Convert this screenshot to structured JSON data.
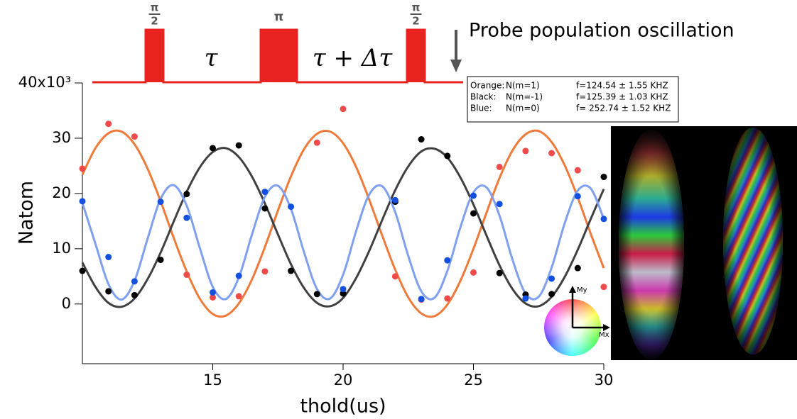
{
  "chart_data": {
    "type": "scatter",
    "annotation": "Probe population oscillation",
    "pulses": [
      {
        "top": "π",
        "bottom": "2"
      },
      {
        "top": "π"
      },
      {
        "top": "π",
        "bottom": "2"
      }
    ],
    "delays": [
      "τ",
      "τ + Δτ"
    ],
    "x_label": "thold(us)",
    "y_label": "Natom",
    "xlim": [
      10,
      30
    ],
    "xticks": [
      15,
      20,
      25,
      30
    ],
    "ylim": [
      -10.8,
      40
    ],
    "yticks": [
      0,
      10,
      20,
      30,
      {
        "value": 40,
        "label": "40x10³"
      }
    ],
    "inset_labels": [
      "My",
      "Mx"
    ],
    "fit_x": [
      10,
      10.5,
      11,
      11.5,
      12,
      12.5,
      13,
      13.5,
      14,
      14.5,
      15,
      15.5,
      16,
      16.5,
      17,
      17.5,
      18,
      18.5,
      19,
      19.5,
      20,
      20.5,
      21,
      21.5,
      22,
      22.5,
      23,
      23.5,
      24,
      24.5,
      25,
      25.5,
      26,
      26.5,
      27,
      27.5,
      28,
      28.5,
      29,
      29.5,
      30
    ],
    "series": [
      {
        "label": "Orange:",
        "name": "N(m=1)",
        "fit": "f=124.54 ± 1.55 KHZ",
        "color": "#f04a4a",
        "fit_color": "#f07a3a",
        "x": [
          10,
          11,
          12,
          14,
          15,
          16,
          17,
          19,
          20,
          22,
          23,
          24,
          25,
          26,
          27,
          28,
          29,
          30
        ],
        "values": [
          24.5,
          32.6,
          30.3,
          5.3,
          1.2,
          1.4,
          5.9,
          29.2,
          35.3,
          5.0,
          0.8,
          1.0,
          5.7,
          24.8,
          27.7,
          27.3,
          24.2,
          3.1
        ],
        "fit_values": [
          23.4,
          28.2,
          30.9,
          31.2,
          28.9,
          24.5,
          18.6,
          12.0,
          5.9,
          1.0,
          -1.8,
          -2.1,
          0.1,
          4.4,
          10.3,
          16.9,
          23.1,
          28.0,
          30.8,
          31.2,
          29.1,
          24.8,
          18.9,
          12.4,
          6.2,
          1.2,
          -1.7,
          -2.2,
          -0.1,
          4.2,
          10.0,
          16.5,
          22.8,
          27.8,
          30.7,
          31.3,
          29.3,
          25.1,
          19.3,
          12.7,
          6.5
        ]
      },
      {
        "label": "Black:",
        "name": "N(m=-1)",
        "fit": "f=125.39 ± 1.03 KHZ",
        "color": "#000000",
        "fit_color": "#404040",
        "x": [
          10,
          11,
          12,
          13,
          14,
          15,
          16,
          17,
          18,
          19,
          20,
          22,
          23,
          24,
          25,
          26,
          27,
          28,
          29,
          30
        ],
        "values": [
          6.0,
          2.3,
          1.6,
          8.0,
          19.9,
          28.2,
          28.7,
          17.3,
          6.0,
          1.8,
          1.9,
          18.5,
          29.8,
          26.8,
          16.4,
          5.6,
          1.7,
          1.8,
          6.5,
          23.0
        ],
        "fit_values": [
          7.5,
          3.1,
          0.2,
          -0.5,
          1.0,
          4.5,
          9.3,
          14.9,
          20.3,
          24.7,
          27.5,
          28.2,
          26.6,
          23.1,
          18.2,
          12.6,
          7.2,
          2.9,
          0.2,
          -0.4,
          1.1,
          4.7,
          9.6,
          15.2,
          20.6,
          24.9,
          27.6,
          28.1,
          26.5,
          22.9,
          18.0,
          12.4,
          7.0,
          2.7,
          0.1,
          -0.4,
          1.3,
          4.9,
          9.8,
          15.4,
          20.8
        ]
      },
      {
        "label": "Blue:",
        "name": "N(m=0)",
        "fit": "f= 252.74 ± 1.52 KHZ",
        "color": "#1450e0",
        "fit_color": "#7fa0f0",
        "x": [
          10,
          11,
          12,
          13,
          14,
          15,
          16,
          17,
          18,
          20,
          22,
          23,
          24,
          25,
          26,
          27,
          28,
          29,
          30
        ],
        "values": [
          18.6,
          8.5,
          4.1,
          18.5,
          15.6,
          2.1,
          5.1,
          20.3,
          17.6,
          2.7,
          18.8,
          0.9,
          7.9,
          19.6,
          18.1,
          1.0,
          4.6,
          19.5,
          15.4
        ],
        "fit_values": [
          18.3,
          10.9,
          3.6,
          0.8,
          4.2,
          11.8,
          19.0,
          21.5,
          17.8,
          10.2,
          3.1,
          0.9,
          4.8,
          12.5,
          19.4,
          21.4,
          17.2,
          9.4,
          2.7,
          1.0,
          5.3,
          13.2,
          19.8,
          21.3,
          16.6,
          8.7,
          2.3,
          1.1,
          6.0,
          13.9,
          20.2,
          21.1,
          16.0,
          8.0,
          1.9,
          1.3,
          6.6,
          14.6,
          20.5,
          20.9,
          15.4
        ]
      }
    ]
  }
}
